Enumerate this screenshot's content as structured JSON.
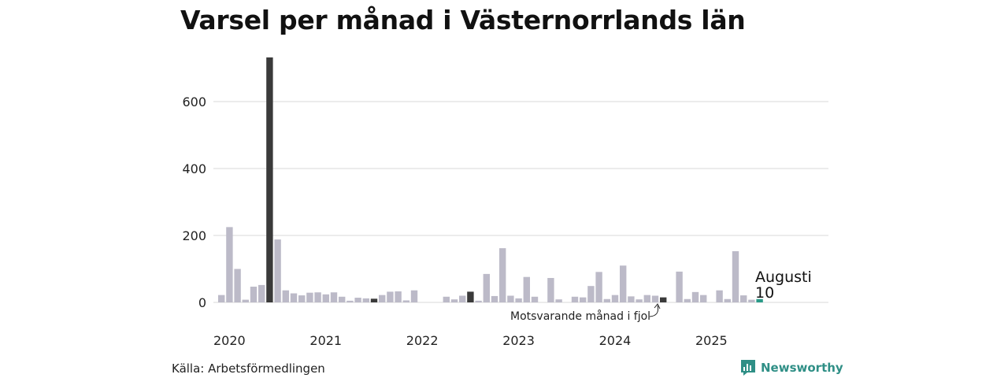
{
  "title": "Varsel per månad i Västernorrlands län",
  "source": "Källa: Arbetsförmedlingen",
  "brand": "Newsworthy",
  "colors": {
    "default": "#bcbac8",
    "same_month": "#3a3a3a",
    "current": "#2a9a88",
    "grid": "#d8d8d8",
    "brand": "#2f8f86"
  },
  "annotation": "Motsvarande månad i fjol",
  "highlight": {
    "label": "Augusti",
    "value_text": "10"
  },
  "chart_data": {
    "type": "bar",
    "title": "Varsel per månad i Västernorrlands län",
    "xlabel": "",
    "ylabel": "",
    "ylim": [
      0,
      740
    ],
    "yticks": [
      0,
      200,
      400,
      600
    ],
    "x_tick_labels": [
      "2020",
      "2021",
      "2022",
      "2023",
      "2024",
      "2025"
    ],
    "start": "2020-01",
    "values": [
      22,
      225,
      100,
      8,
      47,
      52,
      732,
      188,
      36,
      27,
      21,
      29,
      30,
      24,
      30,
      17,
      5,
      14,
      12,
      11,
      22,
      32,
      33,
      6,
      36,
      0,
      0,
      0,
      17,
      9,
      20,
      32,
      5,
      85,
      19,
      162,
      20,
      12,
      76,
      17,
      0,
      73,
      9,
      0,
      17,
      15,
      49,
      91,
      10,
      22,
      110,
      18,
      9,
      22,
      20,
      15,
      0,
      92,
      10,
      31,
      22,
      0,
      36,
      10,
      153,
      21,
      8,
      10
    ],
    "same_month_last_year_indices": [
      6,
      19,
      31,
      55
    ],
    "current_index": 67
  }
}
